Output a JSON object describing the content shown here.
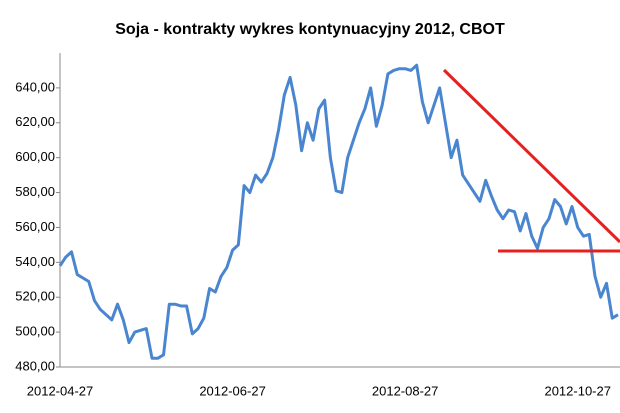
{
  "chart_data": {
    "type": "line",
    "title": "Soja - kontrakty wykres kontynuacyjny 2012, CBOT",
    "categories": [
      "2012-04-27",
      null,
      null,
      null,
      null,
      null,
      null,
      null,
      null,
      null,
      null,
      null,
      null,
      null,
      null,
      null,
      null,
      null,
      null,
      null,
      null,
      null,
      null,
      null,
      null,
      null,
      null,
      null,
      null,
      null,
      "2012-06-27",
      null,
      null,
      null,
      null,
      null,
      null,
      null,
      null,
      null,
      null,
      null,
      null,
      null,
      null,
      null,
      null,
      null,
      null,
      null,
      null,
      null,
      null,
      null,
      null,
      null,
      null,
      null,
      null,
      null,
      "2012-08-27",
      null,
      null,
      null,
      null,
      null,
      null,
      null,
      null,
      null,
      null,
      null,
      null,
      null,
      null,
      null,
      null,
      null,
      null,
      null,
      null,
      null,
      null,
      null,
      null,
      null,
      null,
      null,
      null,
      null,
      "2012-10-27",
      null,
      null,
      null,
      null,
      null,
      null,
      null
    ],
    "series": [
      {
        "color": "#4a86d0",
        "values": [
          538,
          543,
          546,
          533,
          531,
          529,
          518,
          513,
          510,
          507,
          516,
          507,
          494,
          500,
          501,
          502,
          485,
          485,
          487,
          516,
          516,
          515,
          515,
          499,
          502,
          508,
          525,
          523,
          532,
          537,
          547,
          550,
          584,
          580,
          590,
          586,
          591,
          600,
          616,
          636,
          646,
          630,
          604,
          620,
          610,
          628,
          633,
          600,
          581,
          580,
          600,
          610,
          620,
          628,
          640,
          618,
          630,
          648,
          650,
          651,
          651,
          650,
          653,
          632,
          620,
          630,
          640,
          620,
          600,
          610,
          590,
          585,
          580,
          575,
          587,
          578,
          570,
          565,
          570,
          569,
          558,
          568,
          555,
          548,
          560,
          565,
          576,
          572,
          562,
          572,
          560,
          555,
          556,
          532,
          520,
          528,
          508,
          510
        ]
      }
    ],
    "ylim": [
      480,
      660
    ],
    "yticks": [
      {
        "value": 480,
        "label": "480,00"
      },
      {
        "value": 500,
        "label": "500,00"
      },
      {
        "value": 520,
        "label": "520,00"
      },
      {
        "value": 540,
        "label": "540,00"
      },
      {
        "value": 560,
        "label": "560,00"
      },
      {
        "value": 580,
        "label": "580,00"
      },
      {
        "value": 600,
        "label": "600,00"
      },
      {
        "value": 620,
        "label": "620,00"
      },
      {
        "value": 640,
        "label": "640,00"
      }
    ]
  }
}
